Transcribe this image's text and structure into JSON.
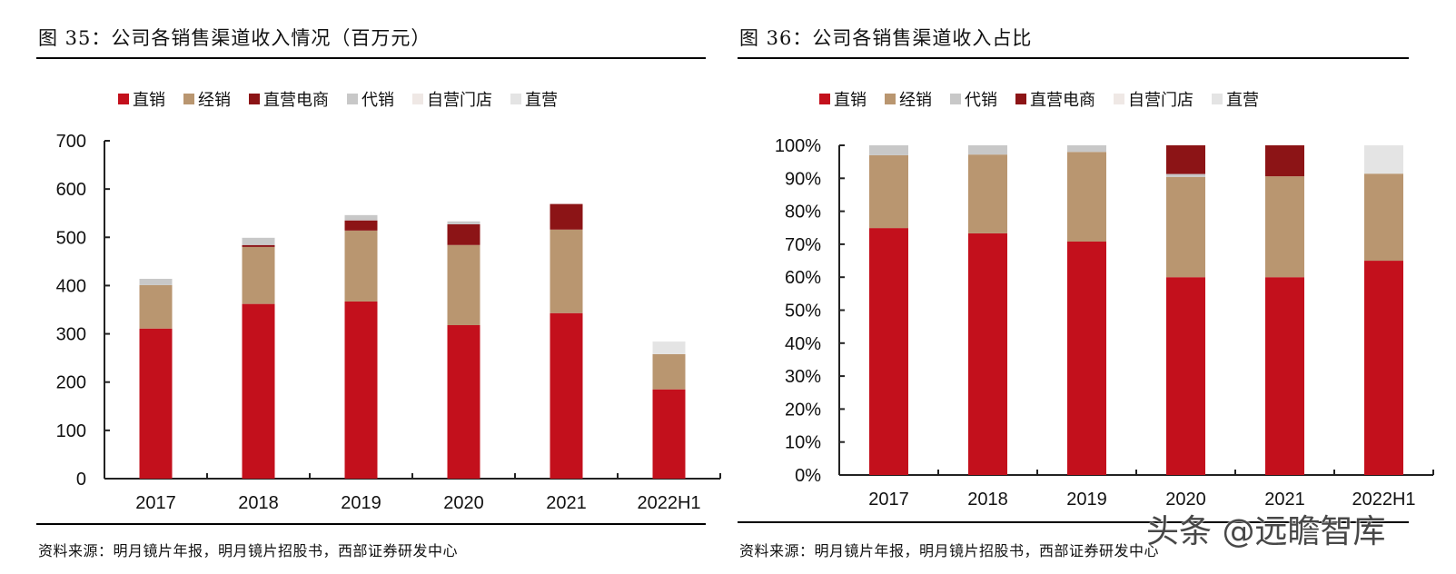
{
  "colors": {
    "直销": "#c3101c",
    "经销": "#b99670",
    "直营电商": "#8c1416",
    "代销": "#c8c8c8",
    "自营门店": "#efe8e5",
    "直营": "#e4e4e4"
  },
  "left": {
    "title": "图 35：公司各销售渠道收入情况（百万元）",
    "legend": [
      "直销",
      "经销",
      "直营电商",
      "代销",
      "自营门店",
      "直营"
    ],
    "source": "资料来源：明月镜片年报，明月镜片招股书，西部证券研发中心"
  },
  "right": {
    "title": "图 36：公司各销售渠道收入占比",
    "legend": [
      "直销",
      "经销",
      "代销",
      "直营电商",
      "自营门店",
      "直营"
    ],
    "source": "资料来源：明月镜片年报，明月镜片招股书，西部证券研发中心"
  },
  "watermark": "头条 @远瞻智库",
  "chart_data": [
    {
      "type": "bar",
      "stacked": true,
      "title": "图 35：公司各销售渠道收入情况（百万元）",
      "xlabel": "",
      "ylabel": "",
      "categories": [
        "2017",
        "2018",
        "2019",
        "2020",
        "2021",
        "2022H1"
      ],
      "ylim": [
        0,
        700
      ],
      "yticks": [
        0,
        100,
        200,
        300,
        400,
        500,
        600,
        700
      ],
      "ytick_labels": [
        "0",
        "100",
        "200",
        "300",
        "400",
        "500",
        "600",
        "700"
      ],
      "legend_position": "top",
      "grid": false,
      "series": [
        {
          "name": "直销",
          "values": [
            311,
            362,
            367,
            318,
            343,
            185
          ]
        },
        {
          "name": "经销",
          "values": [
            90,
            118,
            147,
            166,
            173,
            73
          ]
        },
        {
          "name": "直营电商",
          "values": [
            0,
            4,
            21,
            43,
            53,
            0
          ]
        },
        {
          "name": "代销",
          "values": [
            13,
            15,
            11,
            6,
            0,
            0
          ]
        },
        {
          "name": "自营门店",
          "values": [
            0,
            0,
            0,
            0,
            0,
            0
          ]
        },
        {
          "name": "直营",
          "values": [
            0,
            0,
            0,
            0,
            0,
            26
          ]
        }
      ]
    },
    {
      "type": "bar",
      "stacked": true,
      "title": "图 36：公司各销售渠道收入占比",
      "xlabel": "",
      "ylabel": "",
      "categories": [
        "2017",
        "2018",
        "2019",
        "2020",
        "2021",
        "2022H1"
      ],
      "ylim": [
        0,
        100
      ],
      "yticks": [
        0,
        10,
        20,
        30,
        40,
        50,
        60,
        70,
        80,
        90,
        100
      ],
      "ytick_labels": [
        "0%",
        "10%",
        "20%",
        "30%",
        "40%",
        "50%",
        "60%",
        "70%",
        "80%",
        "90%",
        "100%"
      ],
      "legend_position": "top",
      "grid": false,
      "series": [
        {
          "name": "直销",
          "values": [
            74.9,
            73.3,
            70.8,
            60.0,
            60.0,
            65.0
          ]
        },
        {
          "name": "经销",
          "values": [
            22.1,
            23.9,
            27.2,
            30.4,
            30.6,
            26.4
          ]
        },
        {
          "name": "代销",
          "values": [
            3.0,
            2.8,
            2.0,
            0.9,
            0,
            0
          ]
        },
        {
          "name": "直营电商",
          "values": [
            0,
            0,
            0,
            8.7,
            9.4,
            0
          ]
        },
        {
          "name": "自营门店",
          "values": [
            0,
            0,
            0,
            0,
            0,
            0
          ]
        },
        {
          "name": "直营",
          "values": [
            0,
            0,
            0,
            0,
            0,
            8.6
          ]
        }
      ]
    }
  ]
}
